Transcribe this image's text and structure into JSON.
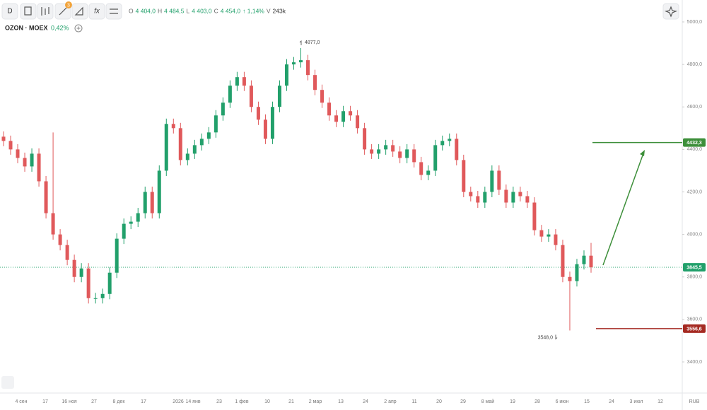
{
  "toolbar": {
    "interval": "D",
    "badge": "3",
    "ohlc": [
      {
        "key": "O",
        "value": "4 404,0"
      },
      {
        "key": "H",
        "value": "4 484,5"
      },
      {
        "key": "L",
        "value": "4 403,0"
      },
      {
        "key": "C",
        "value": "4 454,0"
      }
    ],
    "change": "↑ 1,14%",
    "volume_key": "V",
    "volume": "243k"
  },
  "chart_data": {
    "type": "candlestick",
    "title": "OZON · MOEX",
    "change": "0,42%",
    "up_color": "#22a06b",
    "down_color": "#e0595b",
    "open": [
      4460,
      4440,
      4400,
      4360,
      4320,
      4380,
      4250,
      4100,
      4000,
      3950,
      3880,
      3800,
      3840,
      3700,
      3700,
      3720,
      3820,
      3980,
      4050,
      4060,
      4100,
      4200,
      4100,
      4300,
      4520,
      4500,
      4350,
      4380,
      4420,
      4450,
      4480,
      4560,
      4620,
      4700,
      4740,
      4700,
      4600,
      4540,
      4450,
      4600,
      4700,
      4800,
      4810,
      4820,
      4750,
      4680,
      4620,
      4560,
      4530,
      4580,
      4560,
      4500,
      4400,
      4380,
      4400,
      4420,
      4390,
      4360,
      4400,
      4340,
      4280,
      4300,
      4420,
      4440,
      4450,
      4350,
      4200,
      4180,
      4150,
      4200,
      4300,
      4210,
      4150,
      4200,
      4180,
      4150,
      4020,
      3990,
      4000,
      3950,
      3800,
      3780,
      3860,
      3900
    ],
    "high": [
      4485,
      4465,
      4425,
      4385,
      4405,
      4405,
      4275,
      4480,
      4025,
      3975,
      3905,
      3865,
      3865,
      3725,
      3745,
      3845,
      4005,
      4075,
      4085,
      4125,
      4225,
      4225,
      4325,
      4545,
      4545,
      4525,
      4405,
      4445,
      4475,
      4505,
      4585,
      4645,
      4725,
      4765,
      4765,
      4725,
      4625,
      4565,
      4625,
      4725,
      4825,
      4835,
      4877,
      4845,
      4775,
      4705,
      4645,
      4585,
      4605,
      4605,
      4585,
      4525,
      4425,
      4425,
      4445,
      4445,
      4415,
      4425,
      4425,
      4365,
      4325,
      4445,
      4465,
      4475,
      4475,
      4375,
      4225,
      4205,
      4225,
      4325,
      4325,
      4235,
      4225,
      4225,
      4205,
      4175,
      4045,
      4025,
      4025,
      3975,
      3825,
      3885,
      3925,
      3960
    ],
    "low": [
      4415,
      4375,
      4335,
      4295,
      4295,
      4225,
      4075,
      3975,
      3925,
      3855,
      3775,
      3775,
      3675,
      3675,
      3675,
      3695,
      3795,
      3955,
      4025,
      4035,
      4075,
      4075,
      4075,
      4275,
      4475,
      4325,
      4325,
      4355,
      4395,
      4425,
      4455,
      4535,
      4595,
      4675,
      4675,
      4575,
      4515,
      4425,
      4425,
      4575,
      4675,
      4775,
      4785,
      4725,
      4655,
      4595,
      4535,
      4505,
      4505,
      4535,
      4475,
      4375,
      4355,
      4355,
      4375,
      4365,
      4335,
      4335,
      4315,
      4255,
      4255,
      4275,
      4395,
      4415,
      4325,
      4175,
      4155,
      4125,
      4125,
      4175,
      4185,
      4125,
      4125,
      4155,
      4125,
      3995,
      3965,
      3965,
      3925,
      3775,
      3548,
      3755,
      3835,
      3820
    ],
    "close": [
      4440,
      4400,
      4360,
      4320,
      4380,
      4250,
      4100,
      4000,
      3950,
      3880,
      3800,
      3840,
      3700,
      3700,
      3720,
      3820,
      3980,
      4050,
      4060,
      4100,
      4200,
      4100,
      4300,
      4520,
      4500,
      4350,
      4380,
      4420,
      4450,
      4480,
      4560,
      4620,
      4700,
      4740,
      4700,
      4600,
      4540,
      4450,
      4600,
      4700,
      4800,
      4810,
      4820,
      4750,
      4680,
      4620,
      4560,
      4530,
      4580,
      4560,
      4500,
      4400,
      4380,
      4400,
      4420,
      4390,
      4360,
      4400,
      4340,
      4280,
      4300,
      4420,
      4440,
      4450,
      4350,
      4200,
      4180,
      4150,
      4200,
      4300,
      4210,
      4150,
      4200,
      4180,
      4150,
      4020,
      3990,
      4000,
      3950,
      3800,
      3780,
      3860,
      3900,
      3845.5
    ],
    "ylim": [
      3320,
      5040
    ],
    "yticks": [
      {
        "value": 5000,
        "label": "5000,0"
      },
      {
        "value": 4800,
        "label": "4800,0"
      },
      {
        "value": 4600,
        "label": "4600,0"
      },
      {
        "value": 4400,
        "label": "4400,0"
      },
      {
        "value": 4200,
        "label": "4200,0"
      },
      {
        "value": 4000,
        "label": "4000,0"
      },
      {
        "value": 3800,
        "label": "3800,0"
      },
      {
        "value": 3600,
        "label": "3600,0"
      },
      {
        "value": 3400,
        "label": "3400,0"
      }
    ],
    "xtick_labels": [
      "4 сен",
      "17",
      "16 ноя",
      "27",
      "8 дек",
      "17",
      "2026",
      "14 янв",
      "23",
      "1 фев",
      "10",
      "21",
      "2 мар",
      "13",
      "24",
      "2 апр",
      "11",
      "20",
      "29",
      "8 май",
      "19",
      "28",
      "6 июн",
      "15",
      "24",
      "3 июл",
      "12"
    ],
    "currency": "RUB",
    "last_price": {
      "value": 3845.5,
      "label": "3845,5",
      "color": "#22a06b"
    },
    "levels": [
      {
        "value": 4432.3,
        "label": "4432,3",
        "color": "#3d8f3a"
      },
      {
        "value": 3556.6,
        "label": "3556,6",
        "color": "#a52a22"
      }
    ],
    "annotations": [
      {
        "value": 4877,
        "label": "4877,0"
      },
      {
        "value": 3548,
        "label": "3548,0"
      }
    ]
  }
}
